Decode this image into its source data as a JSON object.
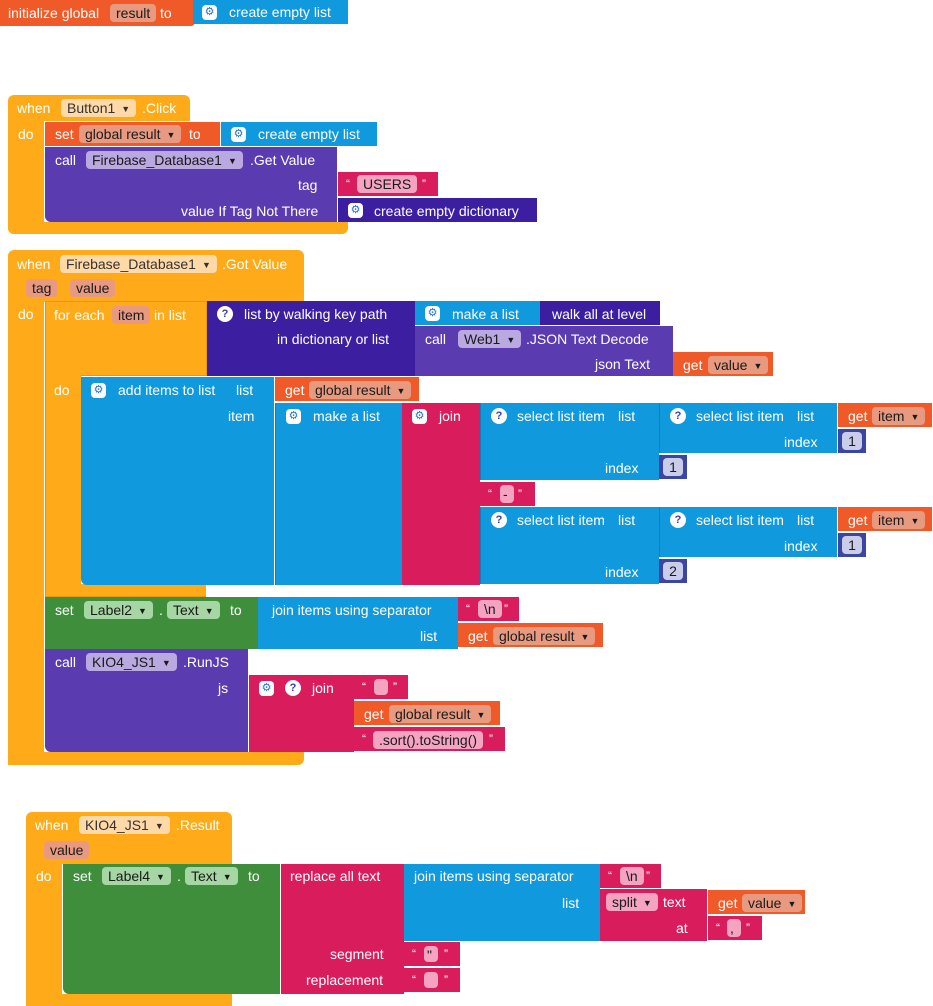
{
  "init_global": {
    "prefix": "initialize global",
    "var": "result",
    "to": "to",
    "value": "create empty list"
  },
  "button_click": {
    "when": "when",
    "component": "Button1",
    "event": ".Click",
    "do": "do",
    "set": "set",
    "set_var": "global result",
    "set_to": "to",
    "set_value": "create empty list",
    "call": "call",
    "call_component": "Firebase_Database1",
    "call_method": ".Get Value",
    "tag_label": "tag",
    "tag_value": "USERS",
    "value_if_label": "value If Tag Not There",
    "value_if_value": "create empty dictionary"
  },
  "got_value": {
    "when": "when",
    "component": "Firebase_Database1",
    "event": ".Got Value",
    "param_tag": "tag",
    "param_value": "value",
    "do": "do",
    "for_each": "for each",
    "item": "item",
    "in_list": "in list",
    "walk": "list by walking key path",
    "make_a_list": "make a list",
    "walk_all": "walk all at level",
    "in_dict": "in dictionary or list",
    "call": "call",
    "web": "Web1",
    "json_decode": ".JSON Text Decode",
    "json_text": "json Text",
    "get": "get",
    "get_value": "value",
    "do2": "do",
    "add_items": "add items to list",
    "list": "list",
    "get_global_result": "global result",
    "item_label": "item",
    "make_a_list2": "make a list",
    "join": "join",
    "select_list_item": "select list item",
    "list2": "list",
    "get_item": "item",
    "index": "index",
    "n1": "1",
    "n2": "2",
    "dash": "-",
    "set": "set",
    "label2": "Label2",
    "dot": ".",
    "text_prop": "Text",
    "to": "to",
    "join_sep": "join items using separator",
    "newline": "\\n",
    "list3": "list",
    "call2": "call",
    "klo": "KIO4_JS1",
    "runjs": ".RunJS",
    "js": "js",
    "join2": "join",
    "quote_empty": "",
    "sort_str": ".sort().toString()"
  },
  "result_block": {
    "when": "when",
    "component": "KIO4_JS1",
    "event": ".Result",
    "param_value": "value",
    "do": "do",
    "set": "set",
    "label4": "Label4",
    "dot": ".",
    "text_prop": "Text",
    "to": "to",
    "replace_all": "replace all text",
    "join_sep": "join items using separator",
    "newline": "\\n",
    "list": "list",
    "split": "split",
    "text": "text",
    "get": "get",
    "get_value": "value",
    "at": "at",
    "comma": ",",
    "segment": "segment",
    "segment_val": "\"",
    "replacement": "replacement",
    "replacement_val": ""
  },
  "colors": {
    "event": "#ffab19",
    "variable": "#f05a28",
    "procedure": "#5b3bb0",
    "text": "#d91d5c",
    "list": "#1199dd",
    "component": "#3e8e3b",
    "math": "#3b46a3"
  }
}
